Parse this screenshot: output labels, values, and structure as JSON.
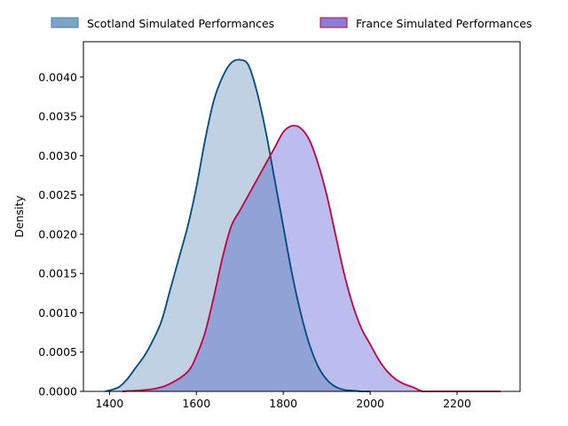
{
  "chart_data": {
    "type": "area",
    "title": "",
    "xlabel": "",
    "ylabel": "Density",
    "xlim": [
      1340,
      2345
    ],
    "ylim": [
      0,
      0.00445
    ],
    "x_ticks": [
      1400,
      1600,
      1800,
      2000,
      2200
    ],
    "y_ticks": [
      0.0,
      0.0005,
      0.001,
      0.0015,
      0.002,
      0.0025,
      0.003,
      0.0035,
      0.004
    ],
    "y_tick_labels": [
      "0.0000",
      "0.0005",
      "0.0010",
      "0.0015",
      "0.0020",
      "0.0025",
      "0.0030",
      "0.0035",
      "0.0040"
    ],
    "x_tick_labels": [
      "1400",
      "1600",
      "1800",
      "2000",
      "2200"
    ],
    "grid": false,
    "legend_position": "top, above plot",
    "series": [
      {
        "name": "Scotland Simulated Performances",
        "line_color": "#004a80",
        "fill_color": "#bfd1e2",
        "legend_fill": "#7da4c4",
        "legend_edge": "#4a7faa",
        "x": [
          1390,
          1420,
          1440,
          1460,
          1480,
          1500,
          1520,
          1540,
          1560,
          1580,
          1600,
          1620,
          1640,
          1660,
          1680,
          1700,
          1720,
          1740,
          1760,
          1780,
          1800,
          1820,
          1840,
          1860,
          1880,
          1900,
          1920,
          1940,
          1960,
          1980,
          2000
        ],
        "y": [
          0.0,
          5e-05,
          0.00015,
          0.0003,
          0.00045,
          0.00065,
          0.0009,
          0.0013,
          0.0017,
          0.0021,
          0.0026,
          0.0032,
          0.0037,
          0.004,
          0.00418,
          0.00422,
          0.00415,
          0.0038,
          0.0033,
          0.0027,
          0.0021,
          0.0015,
          0.001,
          0.0006,
          0.00032,
          0.00015,
          6e-05,
          2e-05,
          1e-05,
          0.0,
          0.0
        ]
      },
      {
        "name": "France Simulated Performances",
        "line_color": "#c8003c",
        "fill_color": "#bcbcef",
        "legend_fill": "#8a7ed8",
        "legend_edge": "#c8003c",
        "x": [
          1430,
          1500,
          1540,
          1580,
          1600,
          1620,
          1640,
          1660,
          1680,
          1700,
          1720,
          1740,
          1760,
          1780,
          1800,
          1820,
          1840,
          1860,
          1880,
          1900,
          1920,
          1940,
          1960,
          1980,
          2000,
          2020,
          2040,
          2060,
          2080,
          2100,
          2120,
          2140,
          2160,
          2200,
          2250,
          2300
        ],
        "y": [
          0.0,
          3e-05,
          0.0001,
          0.00025,
          0.00045,
          0.00075,
          0.0012,
          0.0017,
          0.0021,
          0.0023,
          0.0025,
          0.0027,
          0.0029,
          0.0031,
          0.0033,
          0.00338,
          0.00335,
          0.0032,
          0.0029,
          0.0025,
          0.002,
          0.0015,
          0.0011,
          0.0008,
          0.0006,
          0.0004,
          0.00025,
          0.00015,
          9e-05,
          5e-05,
          0.0,
          0.0,
          0.0,
          0.0,
          0.0,
          0.0
        ]
      }
    ]
  }
}
